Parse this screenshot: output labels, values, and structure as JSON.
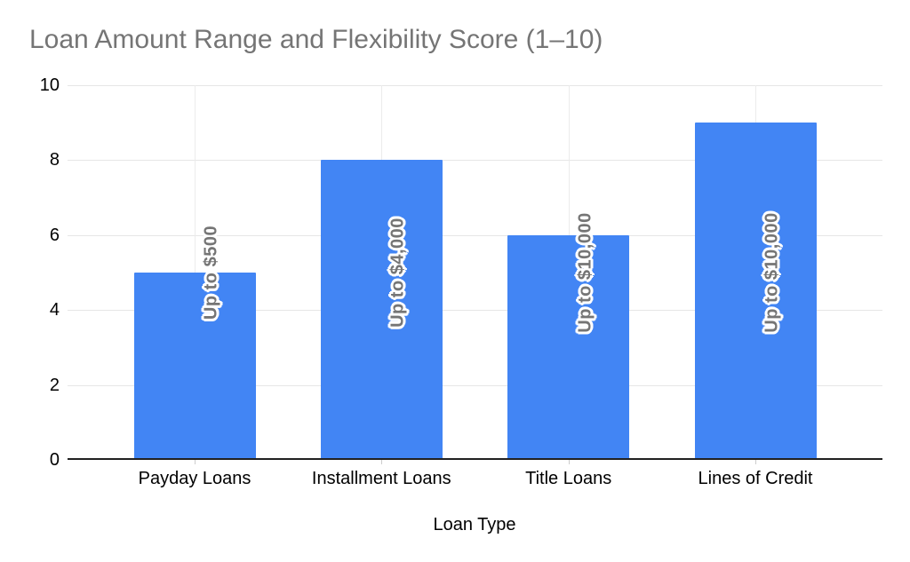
{
  "chart_data": {
    "type": "bar",
    "title": "Loan Amount Range and Flexibility Score (1–10)",
    "xlabel": "Loan Type",
    "ylabel": "",
    "categories": [
      "Payday Loans",
      "Installment Loans",
      "Title Loans",
      "Lines of Credit"
    ],
    "values": [
      5,
      8,
      6,
      9
    ],
    "bar_labels": [
      "Up to $500",
      "Up to $4,000",
      "Up to $10,000",
      "Up to $10,000"
    ],
    "ylim": [
      0,
      10
    ],
    "yticks": [
      0,
      2,
      4,
      6,
      8,
      10
    ],
    "grid": {
      "horizontal": true,
      "vertical_at_category_centers": true
    },
    "legend": "none",
    "colors": {
      "bar": "#4285f4",
      "title_text": "#757575",
      "bar_label_text": "#757575",
      "bar_label_outline": "#ffffff",
      "axis_text": "#000000",
      "gridline": "#e6e6e6",
      "baseline": "#212121",
      "background": "#ffffff"
    }
  }
}
